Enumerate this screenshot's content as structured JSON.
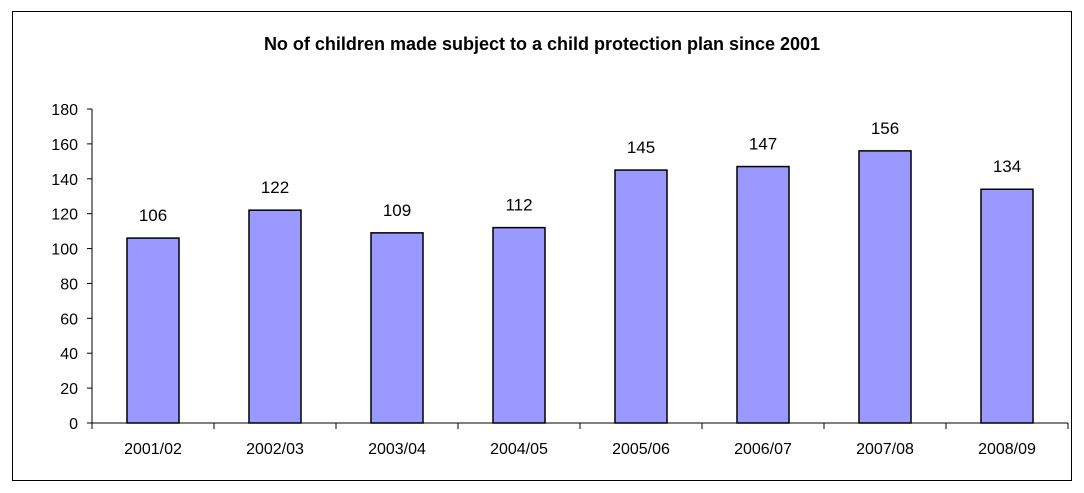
{
  "chart_data": {
    "type": "bar",
    "title": "No of children made subject to a child protection plan since 2001",
    "xlabel": "",
    "ylabel": "",
    "categories": [
      "2001/02",
      "2002/03",
      "2003/04",
      "2004/05",
      "2005/06",
      "2006/07",
      "2007/08",
      "2008/09"
    ],
    "values": [
      106,
      122,
      109,
      112,
      145,
      147,
      156,
      134
    ],
    "data_labels": [
      "106",
      "122",
      "109",
      "112",
      "145",
      "147",
      "156",
      "134"
    ],
    "ylim": [
      0,
      180
    ],
    "yticks": [
      "0",
      "20",
      "40",
      "60",
      "80",
      "100",
      "120",
      "140",
      "160",
      "180"
    ],
    "grid": false,
    "legend": "none",
    "bar_color": "#9999ff",
    "bar_edge_color": "#000000"
  }
}
